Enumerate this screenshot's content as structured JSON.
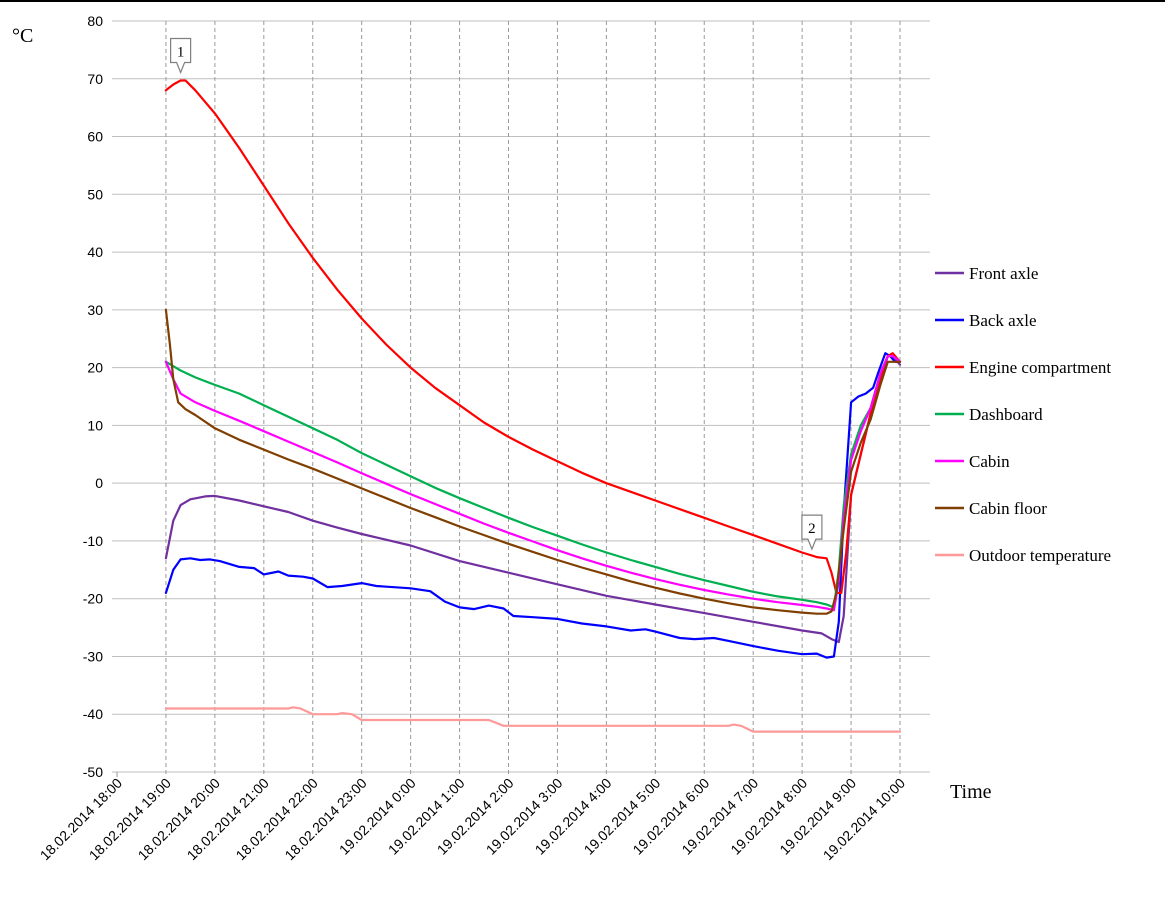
{
  "chart_data": {
    "type": "line",
    "ylabel": "°C",
    "xlabel": "Time",
    "ylim": [
      -50,
      80
    ],
    "yticks": [
      80,
      70,
      60,
      50,
      40,
      30,
      20,
      10,
      0,
      -10,
      -20,
      -30,
      -40,
      -50
    ],
    "x_unit": "hours since 18.02.2014 18:00",
    "xlim": [
      0,
      16
    ],
    "x_tick_labels": [
      "18.02.2014 18:00",
      "18.02.2014 19:00",
      "18.02.2014 20:00",
      "18.02.2014 21:00",
      "18.02.2014 22:00",
      "18.02.2014 23:00",
      "19.02.2014 0:00",
      "19.02.2014 1:00",
      "19.02.2014 2:00",
      "19.02.2014 3:00",
      "19.02.2014 4:00",
      "19.02.2014 5:00",
      "19.02.2014 6:00",
      "19.02.2014 7:00",
      "19.02.2014 8:00",
      "19.02.2014 9:00",
      "19.02.2014 10:00"
    ],
    "grid": "dashed vertical at each tick, solid horizontal",
    "legend_position": "right",
    "annotations": [
      {
        "label": "1",
        "x": 1.3,
        "y": 69.7
      },
      {
        "label": "2",
        "x": 14.2,
        "y": -12.8
      }
    ],
    "series": [
      {
        "name": "Front axle",
        "color": "#7030a0",
        "points": [
          [
            1,
            -13
          ],
          [
            1.15,
            -6.5
          ],
          [
            1.3,
            -3.8
          ],
          [
            1.5,
            -2.8
          ],
          [
            1.8,
            -2.3
          ],
          [
            2,
            -2.2
          ],
          [
            2.5,
            -3
          ],
          [
            3,
            -4
          ],
          [
            3.5,
            -5
          ],
          [
            4,
            -6.5
          ],
          [
            4.5,
            -7.7
          ],
          [
            5,
            -8.8
          ],
          [
            6,
            -10.8
          ],
          [
            7,
            -13.5
          ],
          [
            8,
            -15.5
          ],
          [
            9,
            -17.5
          ],
          [
            10,
            -19.5
          ],
          [
            11,
            -21
          ],
          [
            12,
            -22.5
          ],
          [
            13,
            -24
          ],
          [
            14,
            -25.5
          ],
          [
            14.4,
            -26
          ],
          [
            14.6,
            -27
          ],
          [
            14.75,
            -27.5
          ],
          [
            14.85,
            -23
          ],
          [
            15,
            -2
          ],
          [
            15.2,
            5
          ],
          [
            15.4,
            12
          ],
          [
            15.6,
            18
          ],
          [
            15.75,
            22
          ],
          [
            15.85,
            22
          ],
          [
            16,
            20.5
          ]
        ]
      },
      {
        "name": "Back axle",
        "color": "#0000ff",
        "points": [
          [
            1,
            -19
          ],
          [
            1.15,
            -15
          ],
          [
            1.3,
            -13.2
          ],
          [
            1.5,
            -13
          ],
          [
            1.7,
            -13.3
          ],
          [
            1.9,
            -13.2
          ],
          [
            2.1,
            -13.5
          ],
          [
            2.5,
            -14.5
          ],
          [
            2.8,
            -14.7
          ],
          [
            3,
            -15.8
          ],
          [
            3.3,
            -15.3
          ],
          [
            3.5,
            -16
          ],
          [
            3.8,
            -16.2
          ],
          [
            4,
            -16.5
          ],
          [
            4.3,
            -18
          ],
          [
            4.6,
            -17.8
          ],
          [
            5,
            -17.3
          ],
          [
            5.3,
            -17.8
          ],
          [
            6,
            -18.2
          ],
          [
            6.4,
            -18.7
          ],
          [
            6.7,
            -20.5
          ],
          [
            7,
            -21.5
          ],
          [
            7.3,
            -21.8
          ],
          [
            7.6,
            -21.2
          ],
          [
            7.9,
            -21.7
          ],
          [
            8.1,
            -23
          ],
          [
            8.5,
            -23.2
          ],
          [
            9,
            -23.5
          ],
          [
            9.5,
            -24.3
          ],
          [
            10,
            -24.8
          ],
          [
            10.5,
            -25.5
          ],
          [
            10.8,
            -25.3
          ],
          [
            11,
            -25.7
          ],
          [
            11.5,
            -26.8
          ],
          [
            11.8,
            -27
          ],
          [
            12.2,
            -26.8
          ],
          [
            12.5,
            -27.3
          ],
          [
            13,
            -28.2
          ],
          [
            13.5,
            -29
          ],
          [
            14,
            -29.6
          ],
          [
            14.3,
            -29.5
          ],
          [
            14.5,
            -30.2
          ],
          [
            14.65,
            -30
          ],
          [
            14.75,
            -24
          ],
          [
            14.85,
            -5
          ],
          [
            15,
            14
          ],
          [
            15.15,
            15
          ],
          [
            15.3,
            15.5
          ],
          [
            15.45,
            16.5
          ],
          [
            15.55,
            19
          ],
          [
            15.7,
            22.5
          ],
          [
            15.8,
            22
          ],
          [
            15.9,
            21
          ],
          [
            16,
            21
          ]
        ]
      },
      {
        "name": "Engine compartment",
        "color": "#ff0000",
        "points": [
          [
            1,
            68
          ],
          [
            1.15,
            69
          ],
          [
            1.3,
            69.7
          ],
          [
            1.4,
            69.7
          ],
          [
            1.6,
            68
          ],
          [
            2,
            64
          ],
          [
            2.5,
            58
          ],
          [
            3,
            51.5
          ],
          [
            3.5,
            45
          ],
          [
            4,
            39
          ],
          [
            4.5,
            33.5
          ],
          [
            5,
            28.5
          ],
          [
            5.5,
            24
          ],
          [
            6,
            20
          ],
          [
            6.5,
            16.5
          ],
          [
            7,
            13.5
          ],
          [
            7.5,
            10.5
          ],
          [
            8,
            8
          ],
          [
            8.5,
            5.8
          ],
          [
            9,
            3.8
          ],
          [
            9.5,
            1.8
          ],
          [
            10,
            0
          ],
          [
            10.5,
            -1.5
          ],
          [
            11,
            -3
          ],
          [
            11.5,
            -4.5
          ],
          [
            12,
            -6
          ],
          [
            12.5,
            -7.5
          ],
          [
            13,
            -9
          ],
          [
            13.5,
            -10.5
          ],
          [
            14,
            -12
          ],
          [
            14.3,
            -12.8
          ],
          [
            14.5,
            -13
          ],
          [
            14.6,
            -15.5
          ],
          [
            14.7,
            -19
          ],
          [
            14.8,
            -19
          ],
          [
            14.9,
            -12
          ],
          [
            15,
            -2
          ],
          [
            15.2,
            5
          ],
          [
            15.4,
            12
          ],
          [
            15.6,
            18
          ],
          [
            15.75,
            22
          ],
          [
            15.85,
            22.5
          ],
          [
            16,
            21
          ]
        ]
      },
      {
        "name": "Dashboard",
        "color": "#00b050",
        "points": [
          [
            1,
            21
          ],
          [
            1.3,
            19.5
          ],
          [
            1.6,
            18.3
          ],
          [
            2,
            17
          ],
          [
            2.5,
            15.5
          ],
          [
            3,
            13.5
          ],
          [
            3.5,
            11.5
          ],
          [
            4,
            9.5
          ],
          [
            4.5,
            7.5
          ],
          [
            5,
            5.2
          ],
          [
            5.5,
            3.2
          ],
          [
            6,
            1.2
          ],
          [
            6.5,
            -0.8
          ],
          [
            7,
            -2.6
          ],
          [
            7.5,
            -4.3
          ],
          [
            8,
            -6
          ],
          [
            8.5,
            -7.6
          ],
          [
            9,
            -9.1
          ],
          [
            9.5,
            -10.6
          ],
          [
            10,
            -12
          ],
          [
            10.5,
            -13.3
          ],
          [
            11,
            -14.5
          ],
          [
            11.5,
            -15.7
          ],
          [
            12,
            -16.8
          ],
          [
            12.5,
            -17.8
          ],
          [
            13,
            -18.8
          ],
          [
            13.5,
            -19.6
          ],
          [
            14,
            -20.2
          ],
          [
            14.3,
            -20.6
          ],
          [
            14.5,
            -21
          ],
          [
            14.65,
            -21.5
          ],
          [
            14.75,
            -15
          ],
          [
            14.85,
            -4
          ],
          [
            15,
            5
          ],
          [
            15.2,
            10
          ],
          [
            15.4,
            13
          ],
          [
            15.6,
            19
          ],
          [
            15.75,
            22
          ],
          [
            15.85,
            22
          ],
          [
            16,
            21
          ]
        ]
      },
      {
        "name": "Cabin",
        "color": "#ff00ff",
        "points": [
          [
            1,
            21
          ],
          [
            1.15,
            18
          ],
          [
            1.3,
            15.5
          ],
          [
            1.6,
            14
          ],
          [
            2,
            12.5
          ],
          [
            2.5,
            10.8
          ],
          [
            3,
            9
          ],
          [
            3.5,
            7.2
          ],
          [
            4,
            5.4
          ],
          [
            4.5,
            3.6
          ],
          [
            5,
            1.7
          ],
          [
            5.5,
            -0.1
          ],
          [
            6,
            -1.9
          ],
          [
            6.5,
            -3.6
          ],
          [
            7,
            -5.3
          ],
          [
            7.5,
            -7
          ],
          [
            8,
            -8.6
          ],
          [
            8.5,
            -10.1
          ],
          [
            9,
            -11.6
          ],
          [
            9.5,
            -13
          ],
          [
            10,
            -14.3
          ],
          [
            10.5,
            -15.5
          ],
          [
            11,
            -16.6
          ],
          [
            11.5,
            -17.6
          ],
          [
            12,
            -18.5
          ],
          [
            12.5,
            -19.3
          ],
          [
            13,
            -20
          ],
          [
            13.5,
            -20.6
          ],
          [
            14,
            -21.1
          ],
          [
            14.3,
            -21.4
          ],
          [
            14.5,
            -21.7
          ],
          [
            14.65,
            -22
          ],
          [
            14.75,
            -17
          ],
          [
            14.85,
            -6
          ],
          [
            15,
            4
          ],
          [
            15.2,
            9
          ],
          [
            15.4,
            13
          ],
          [
            15.6,
            19
          ],
          [
            15.75,
            22
          ],
          [
            15.85,
            22
          ],
          [
            16,
            21
          ]
        ]
      },
      {
        "name": "Cabin floor",
        "color": "#7f3f00",
        "points": [
          [
            1,
            30
          ],
          [
            1.08,
            24
          ],
          [
            1.15,
            18
          ],
          [
            1.25,
            14
          ],
          [
            1.4,
            12.8
          ],
          [
            1.6,
            11.8
          ],
          [
            2,
            9.5
          ],
          [
            2.5,
            7.5
          ],
          [
            3,
            5.8
          ],
          [
            3.5,
            4.1
          ],
          [
            4,
            2.5
          ],
          [
            4.5,
            0.8
          ],
          [
            5,
            -0.9
          ],
          [
            5.5,
            -2.6
          ],
          [
            6,
            -4.3
          ],
          [
            6.5,
            -5.9
          ],
          [
            7,
            -7.5
          ],
          [
            7.5,
            -9
          ],
          [
            8,
            -10.5
          ],
          [
            8.5,
            -11.9
          ],
          [
            9,
            -13.3
          ],
          [
            9.5,
            -14.6
          ],
          [
            10,
            -15.8
          ],
          [
            10.5,
            -17
          ],
          [
            11,
            -18.1
          ],
          [
            11.5,
            -19.1
          ],
          [
            12,
            -20
          ],
          [
            12.5,
            -20.8
          ],
          [
            13,
            -21.5
          ],
          [
            13.5,
            -22
          ],
          [
            14,
            -22.4
          ],
          [
            14.3,
            -22.6
          ],
          [
            14.5,
            -22.6
          ],
          [
            14.6,
            -22.2
          ],
          [
            14.7,
            -19
          ],
          [
            14.85,
            -8
          ],
          [
            15,
            2
          ],
          [
            15.2,
            7
          ],
          [
            15.4,
            11
          ],
          [
            15.6,
            17
          ],
          [
            15.75,
            21
          ],
          [
            15.85,
            21
          ],
          [
            16,
            21
          ]
        ]
      },
      {
        "name": "Outdoor temperature",
        "color": "#ff9999",
        "points": [
          [
            1,
            -39
          ],
          [
            1.5,
            -39
          ],
          [
            2,
            -39
          ],
          [
            2.5,
            -39
          ],
          [
            3,
            -39
          ],
          [
            3.5,
            -39
          ],
          [
            3.6,
            -38.8
          ],
          [
            3.75,
            -39
          ],
          [
            4,
            -40
          ],
          [
            4.5,
            -40
          ],
          [
            4.6,
            -39.8
          ],
          [
            4.8,
            -40
          ],
          [
            5,
            -41
          ],
          [
            6,
            -41
          ],
          [
            7,
            -41
          ],
          [
            7.6,
            -41
          ],
          [
            7.9,
            -42
          ],
          [
            8.5,
            -42
          ],
          [
            9,
            -42
          ],
          [
            10,
            -42
          ],
          [
            11,
            -42
          ],
          [
            12,
            -42
          ],
          [
            12.5,
            -42
          ],
          [
            12.6,
            -41.8
          ],
          [
            12.75,
            -42
          ],
          [
            13,
            -43
          ],
          [
            13.5,
            -43
          ],
          [
            14,
            -43
          ],
          [
            15,
            -43
          ],
          [
            16,
            -43
          ]
        ]
      }
    ]
  }
}
